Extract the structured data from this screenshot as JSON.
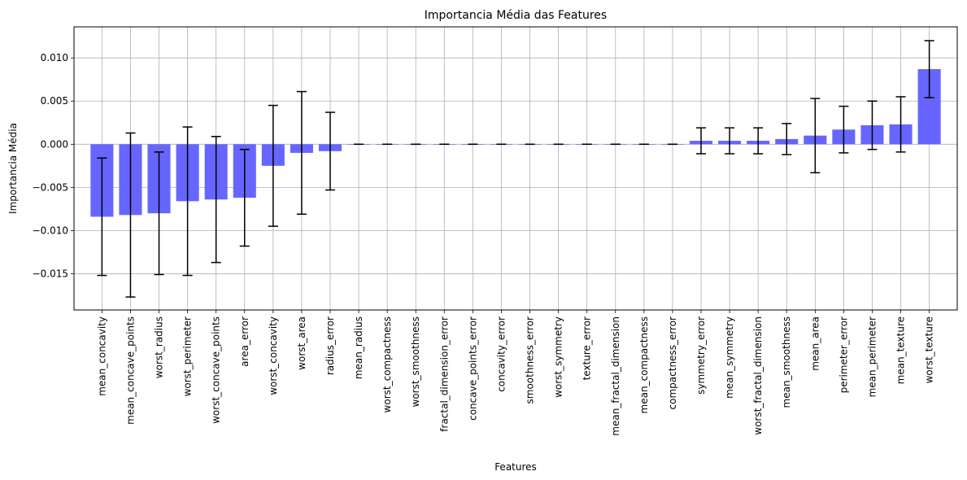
{
  "chart_data": {
    "type": "bar",
    "title": "Importancia Média das Features",
    "xlabel": "Features",
    "ylabel": "Importancia Média",
    "ylim": [
      -0.0192,
      0.0136
    ],
    "yticks": [
      -0.015,
      -0.01,
      -0.005,
      0.0,
      0.005,
      0.01
    ],
    "ytick_labels": [
      "−0.015",
      "−0.010",
      "−0.005",
      "0.000",
      "0.005",
      "0.010"
    ],
    "grid": true,
    "bar_color": "#6666ff",
    "error_color": "#000000",
    "categories": [
      "mean_concavity",
      "mean_concave_points",
      "worst_radius",
      "worst_perimeter",
      "worst_concave_points",
      "area_error",
      "worst_concavity",
      "worst_area",
      "radius_error",
      "mean_radius",
      "worst_compactness",
      "worst_smoothness",
      "fractal_dimension_error",
      "concave_points_error",
      "concavity_error",
      "smoothness_error",
      "worst_symmetry",
      "texture_error",
      "mean_fractal_dimension",
      "mean_compactness",
      "compactness_error",
      "symmetry_error",
      "mean_symmetry",
      "worst_fractal_dimension",
      "mean_smoothness",
      "mean_area",
      "perimeter_error",
      "mean_perimeter",
      "mean_texture",
      "worst_texture"
    ],
    "values": [
      -0.0084,
      -0.0082,
      -0.008,
      -0.0066,
      -0.0064,
      -0.0062,
      -0.0025,
      -0.001,
      -0.0008,
      0.0,
      0.0,
      0.0,
      0.0,
      0.0,
      0.0,
      0.0,
      0.0,
      0.0,
      0.0,
      0.0,
      0.0,
      0.0004,
      0.0004,
      0.0004,
      0.0006,
      0.001,
      0.0017,
      0.0022,
      0.0023,
      0.0087
    ],
    "errors": [
      0.0068,
      0.0095,
      0.0071,
      0.0086,
      0.0073,
      0.0056,
      0.007,
      0.0071,
      0.0045,
      0.0,
      0.0,
      0.0,
      0.0,
      0.0,
      0.0,
      0.0,
      0.0,
      0.0,
      0.0,
      0.0,
      0.0,
      0.0015,
      0.0015,
      0.0015,
      0.0018,
      0.0043,
      0.0027,
      0.0028,
      0.0032,
      0.0033
    ]
  }
}
